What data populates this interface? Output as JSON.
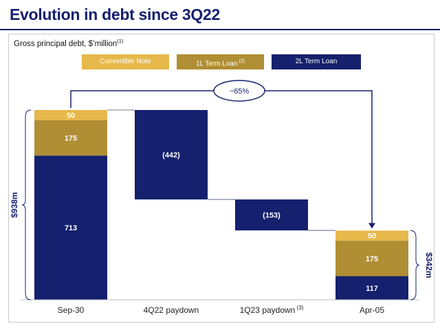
{
  "title": "Evolution in debt since 3Q22",
  "subtitle": "Gross principal debt, $’million",
  "subtitle_footnote": "(1)",
  "colors": {
    "convertible": "#E7B84A",
    "term_1l": "#B08E34",
    "term_2l": "#15206E",
    "accent": "#15206E"
  },
  "legend": [
    {
      "label": "Convertible Note",
      "footnote": "",
      "color": "#E7B84A",
      "text_color": "#ffffff"
    },
    {
      "label": "1L Term Loan",
      "footnote": "(2)",
      "color": "#B08E34",
      "text_color": "#ffffff"
    },
    {
      "label": "2L Term Loan",
      "footnote": "",
      "color": "#15206E",
      "text_color": "#ffffff"
    }
  ],
  "chart_data": {
    "type": "waterfall",
    "title": "Evolution in debt since 3Q22",
    "ylabel": "Gross principal debt, $’million",
    "categories": [
      "Sep-30",
      "4Q22 paydown",
      "1Q23 paydown",
      "Apr-05"
    ],
    "category_footnotes": [
      "",
      "",
      "(3)",
      ""
    ],
    "bars": [
      {
        "category": "Sep-30",
        "kind": "total",
        "segments": [
          {
            "series": "2L Term Loan",
            "value": 713,
            "label": "713"
          },
          {
            "series": "1L Term Loan",
            "value": 175,
            "label": "175"
          },
          {
            "series": "Convertible Note",
            "value": 50,
            "label": "50"
          }
        ]
      },
      {
        "category": "4Q22 paydown",
        "kind": "delta",
        "segments": [
          {
            "series": "2L Term Loan",
            "value": -442,
            "label": "(442)"
          }
        ]
      },
      {
        "category": "1Q23 paydown",
        "kind": "delta",
        "segments": [
          {
            "series": "2L Term Loan",
            "value": -153,
            "label": "(153)"
          }
        ]
      },
      {
        "category": "Apr-05",
        "kind": "total",
        "segments": [
          {
            "series": "2L Term Loan",
            "value": 117,
            "label": "117"
          },
          {
            "series": "1L Term Loan",
            "value": 175,
            "label": "175"
          },
          {
            "series": "Convertible Note",
            "value": 50,
            "label": "50"
          }
        ]
      }
    ],
    "totals": [
      {
        "category": "Sep-30",
        "label": "$938m",
        "value": 938
      },
      {
        "category": "Apr-05",
        "label": "$342m",
        "value": 342
      }
    ],
    "reduction_label": "~65%",
    "ylim": [
      0,
      938
    ]
  }
}
